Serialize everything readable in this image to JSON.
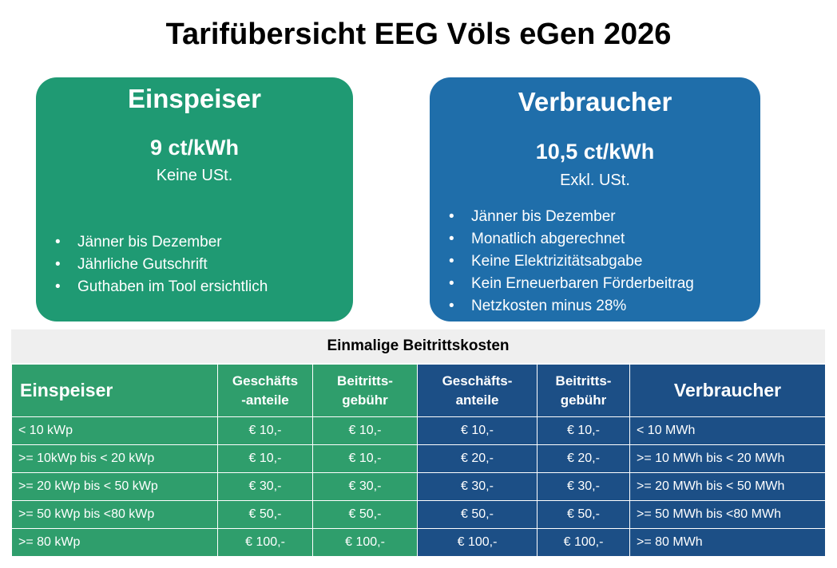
{
  "title": "Tarifübersicht EEG Völs eGen 2026",
  "einspeiser_card": {
    "heading": "Einspeiser",
    "price": "9 ct/kWh",
    "tax": "Keine  USt.",
    "bullets": [
      "Jänner bis Dezember",
      "Jährliche Gutschrift",
      "Guthaben im Tool ersichtlich"
    ]
  },
  "verbraucher_card": {
    "heading": "Verbraucher",
    "price": "10,5 ct/kWh",
    "tax": "Exkl.  USt.",
    "bullets": [
      "Jänner bis Dezember",
      "Monatlich abgerechnet",
      "Keine Elektrizitätsabgabe",
      "Kein Erneuerbaren Förderbeitrag",
      "Netzkosten minus 28%"
    ]
  },
  "fees_table": {
    "caption": "Einmalige Beitrittskosten",
    "headers": {
      "einspeiser": "Einspeiser",
      "geschaefts_g_1": "Geschäfts",
      "geschaefts_g_2": "-anteile",
      "beitritt_g_1": "Beitritts-",
      "beitritt_g_2": "gebühr",
      "geschaefts_b_1": "Geschäfts-",
      "geschaefts_b_2": "anteile",
      "beitritt_b_1": "Beitritts-",
      "beitritt_b_2": "gebühr",
      "verbraucher": "Verbraucher"
    },
    "rows": [
      {
        "ein": "< 10 kWp",
        "g_ant": "€ 10,-",
        "g_geb": "€ 10,-",
        "b_ant": "€ 10,-",
        "b_geb": "€ 10,-",
        "ver": "< 10 MWh"
      },
      {
        "ein": ">= 10kWp bis < 20 kWp",
        "g_ant": "€ 10,-",
        "g_geb": "€ 10,-",
        "b_ant": "€ 20,-",
        "b_geb": "€ 20,-",
        "ver": ">= 10 MWh bis < 20 MWh"
      },
      {
        "ein": ">= 20 kWp bis < 50 kWp",
        "g_ant": "€ 30,-",
        "g_geb": "€ 30,-",
        "b_ant": "€ 30,-",
        "b_geb": "€ 30,-",
        "ver": ">= 20 MWh bis < 50 MWh"
      },
      {
        "ein": ">= 50 kWp bis <80 kWp",
        "g_ant": "€ 50,-",
        "g_geb": "€ 50,-",
        "b_ant": "€ 50,-",
        "b_geb": "€ 50,-",
        "ver": ">= 50 MWh bis <80 MWh"
      },
      {
        "ein": ">= 80 kWp",
        "g_ant": "€ 100,-",
        "g_geb": "€ 100,-",
        "b_ant": "€ 100,-",
        "b_geb": "€ 100,-",
        "ver": ">= 80 MWh"
      }
    ]
  },
  "colors": {
    "green_card": "#1f9a73",
    "blue_card": "#1f6eaa",
    "green_table": "#2f9e6c",
    "blue_table": "#1c4f86"
  }
}
